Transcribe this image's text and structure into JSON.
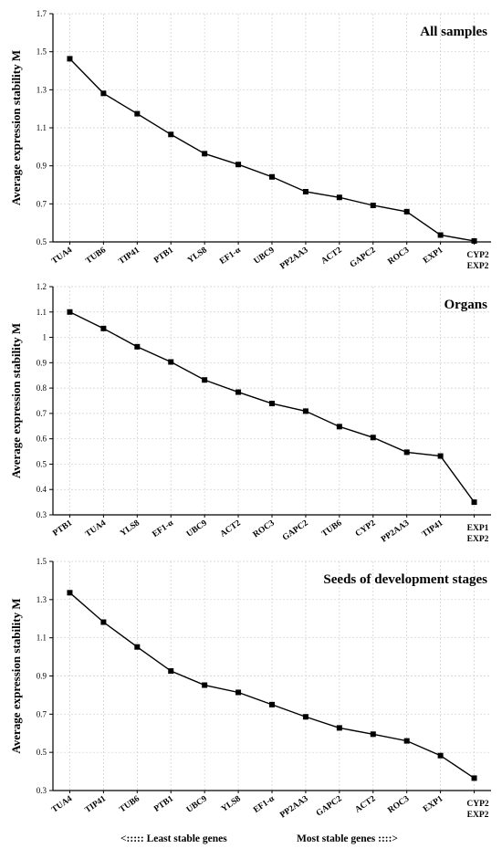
{
  "chart_data": [
    {
      "type": "line",
      "title": "All samples",
      "ylabel": "Average expression stability M",
      "ylim": [
        0.5,
        1.7
      ],
      "yticks": [
        "0.5",
        "0.7",
        "0.9",
        "1.1",
        "1.3",
        "1.5",
        "1.7"
      ],
      "grid": true,
      "categories": [
        "TUA4",
        "TUB6",
        "TIP41",
        "PTB1",
        "YLS8",
        "EF1-α",
        "UBC9",
        "PP2AA3",
        "ACT2",
        "GAPC2",
        "ROC3",
        "EXP1",
        "CYP2\nEXP2"
      ],
      "values": [
        1.463,
        1.281,
        1.174,
        1.065,
        0.964,
        0.907,
        0.842,
        0.764,
        0.734,
        0.692,
        0.659,
        0.536,
        0.505
      ]
    },
    {
      "type": "line",
      "title": "Organs",
      "ylabel": "Average expression stability M",
      "ylim": [
        0.3,
        1.2
      ],
      "yticks": [
        "0.3",
        "0.4",
        "0.5",
        "0.6",
        "0.7",
        "0.8",
        "0.9",
        "1",
        "1.1",
        "1.2"
      ],
      "grid": true,
      "categories": [
        "PTB1",
        "TUA4",
        "YLS8",
        "EF1-α",
        "UBC9",
        "ACT2",
        "ROC3",
        "GAPC2",
        "TUB6",
        "CYP2",
        "PP2AA3",
        "TIP41",
        "EXP1\nEXP2"
      ],
      "values": [
        1.1,
        1.035,
        0.963,
        0.903,
        0.832,
        0.784,
        0.739,
        0.709,
        0.648,
        0.605,
        0.547,
        0.532,
        0.35
      ]
    },
    {
      "type": "line",
      "title": "Seeds of development stages",
      "ylabel": "Average expression stability M",
      "ylim": [
        0.3,
        1.5
      ],
      "yticks": [
        "0.3",
        "0.5",
        "0.7",
        "0.9",
        "1.1",
        "1.3",
        "1.5"
      ],
      "grid": true,
      "categories": [
        "TUA4",
        "TIP41",
        "TUB6",
        "PTB1",
        "UBC9",
        "YLS8",
        "EF1-α",
        "PP2AA3",
        "GAPC2",
        "ACT2",
        "ROC3",
        "EXP1",
        "CYP2\nEXP2"
      ],
      "values": [
        1.336,
        1.182,
        1.052,
        0.926,
        0.852,
        0.814,
        0.75,
        0.686,
        0.628,
        0.595,
        0.56,
        0.483,
        0.365
      ]
    }
  ],
  "footer": {
    "left": "<:::::  Least stable genes",
    "right": "Most stable genes ::::>"
  }
}
